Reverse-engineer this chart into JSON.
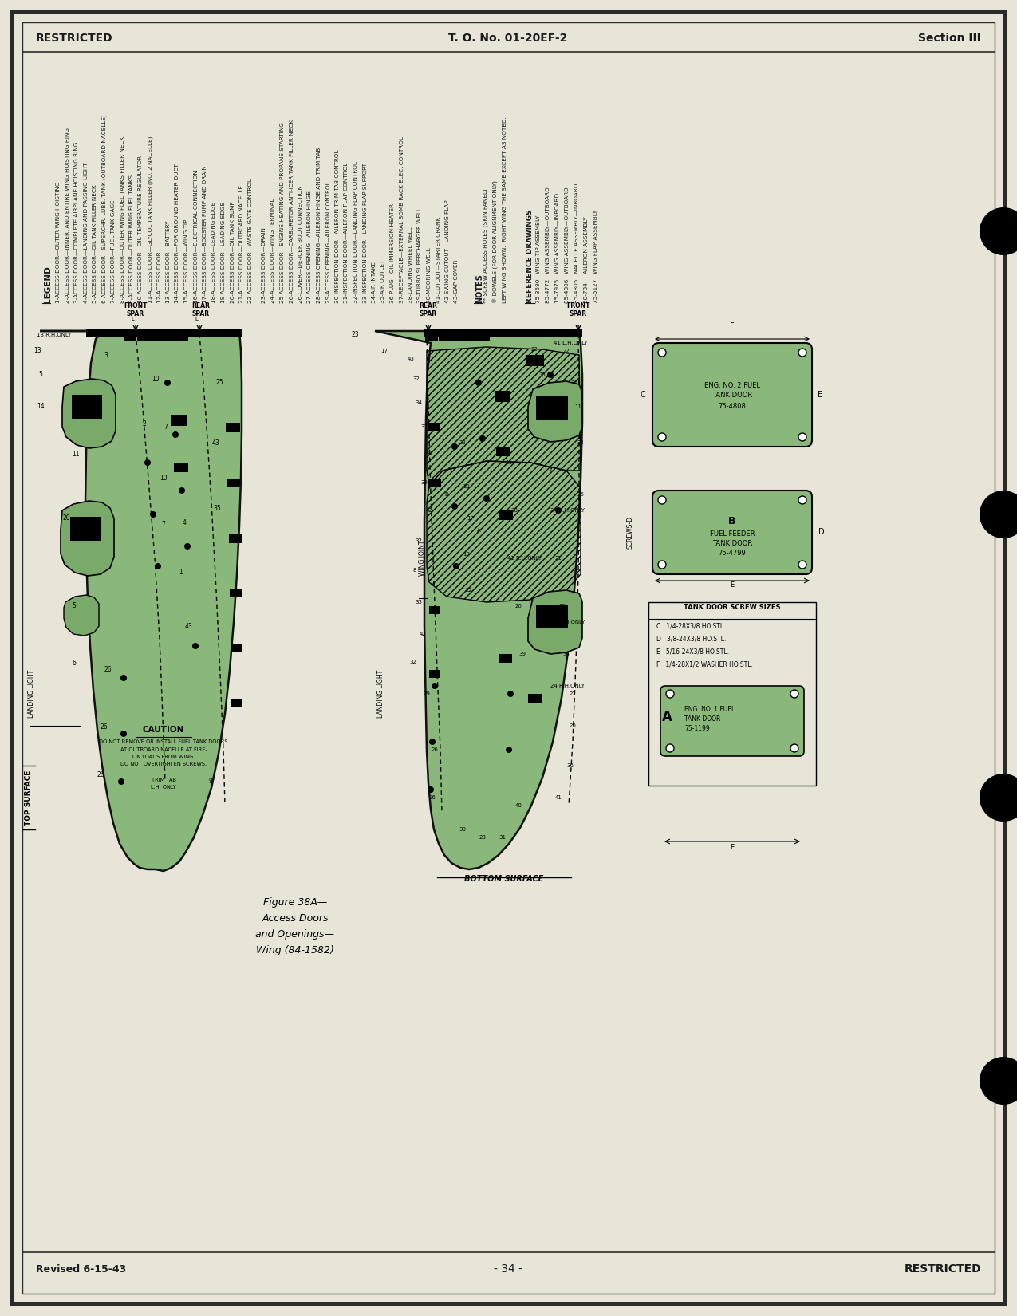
{
  "page_bg": "#e8e4d8",
  "border_color": "#2a2a2a",
  "text_color": "#1a1a1a",
  "header_left": "RESTRICTED",
  "header_center": "T. O. No. 01-20EF-2",
  "header_right": "Section III",
  "footer_left": "Revised 6-15-43",
  "footer_center": "- 34 -",
  "footer_right": "RESTRICTED",
  "figure_caption_line1": "Figure 38A—",
  "figure_caption_line2": "Access Doors",
  "figure_caption_line3": "and Openings—",
  "figure_caption_line4": "Wing (84-1582)",
  "wing_fill": "#8ab87a",
  "wing_fill2": "#7aaa6a",
  "wing_stroke": "#111111",
  "legend_col1": [
    "1-ACCESS DOOR—OUTER WING HOISTING",
    "2-ACCESS DOOR—INNER, AND ENTIRE WING HOISTING RING",
    "3-ACCESS DOOR—COMPLETE AIRPLANE HOISTING RING",
    "4-ACCESS DOOR—LANDING AND PASSING LIGHT",
    "5-ACCESS DOOR—OIL TANK FILLER NECK",
    "6-ACCESS DOOR—SUPERCHR. LUBE. TANK (OUTBOARD NACELLE)",
    "7-ACCESS DOOR—FUEL TANK GAGE",
    "8-ACCESS DOOR—OUTER WING FUEL TANKS FILLER NECK",
    "9-ACCESS DOOR—OUTER WING FUEL TANKS",
    "10-ACCESS DOOR—OIL TEMPERATURE REGULATOR",
    "11-ACCESS DOOR—GLYCOL TANK FILLER (NO. 2 NACELLE)",
    "12-ACCESS DOOR",
    "13-ACCESS DOOR—BATTERY",
    "14-ACCESS DOOR—FOR GROUND HEATER DUCT",
    "15-ACCESS DOOR—WING TIP",
    "16-ACCESS DOOR—ELECTRICAL CONNECTION",
    "17-ACCESS DOOR—BOOSTER PUMP AND DRAIN",
    "18-ACCESS DOOR—LEADING EDGE",
    "19-ACCESS DOOR—LEADING EDGE",
    "20-ACCESS DOOR—OIL TANK SUMP",
    "21-ACCESS DOOR—OUTBOARD NACELLE",
    "22-ACCESS DOOR—WASTE GATE CONTROL"
  ],
  "legend_col2": [
    "23-ACCESS DOOR—DRAIN",
    "24-ACCESS DOOR—WING TERMINAL",
    "25-ACCESS DOOR—ENGINE HEATING AND PROPANE STARTING",
    "26-ACCESS DOOR—CARBURETOR ANTI-ICER TANK FILLER NECK",
    "26-COVER—DE-ICER BOOT CONNECTION",
    "27-ACCESS OPENING—AILERON HINGE",
    "28-ACCESS OPENING—AILERON HINGE AND TRIM TAB",
    "29-ACCESS OPENING—AILERON CONTROL",
    "30-INSPECTION DOOR—AILERON TRIM TAB CONTROL",
    "31-INSPECTION DOOR—AILERON FLAP CONTROL",
    "32-INSPECTION DOOR—LANDING FLAP CONTROL",
    "33-INSPECTION DOOR—LANDING FLAP SUPPORT",
    "34-AIR INTAKE",
    "35-AIR OUTLET",
    "36-PLUG—OIL IMMERSION HEATER",
    "37-RECEPTACLE—EXTERNAL BOMB RACK ELEC. CONTROL",
    "38-LANDING WHEEL WELL",
    "39-TURBO SUPERCHARGER WELL",
    "40-MOORING WELL",
    "41-CUTOUT—STARTER CRANK",
    "42-SWING CUTOUT—LANDING FLAP",
    "43-GAP COVER"
  ],
  "notes": [
    "** SCREW ACCESS HOLES (SKIN PANEL)",
    "® DOWELS (FOR DOOR ALIGNMENT ONLY)",
    "LEFT WING SHOWN.  RIGHT WING THE SAME EXCEPT AS NOTED."
  ],
  "ref_drawings": [
    "75-3590   WING TIP ASSEMBLY",
    "85-4772   WING ASSEMBLY—OUTBOARD",
    "15-7975   WING ASSEMBLY—INBOARD",
    "85-4806   WING ASSEMBLY—OUTBOARD",
    "85-4805   NACELLE ASSEMBLY—INBOARD",
    "58-784     AILERON ASSEMBLY",
    "75-5127   WING FLAP ASSEMBLY"
  ]
}
